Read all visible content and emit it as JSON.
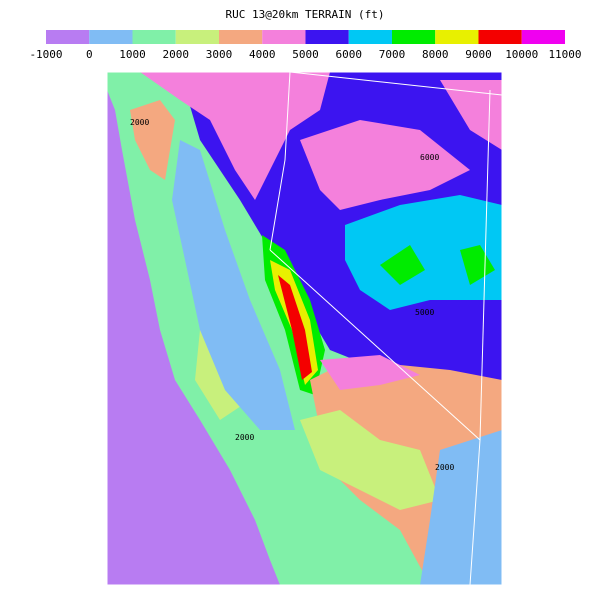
{
  "title": "RUC 13@20km TERRAIN (ft)",
  "colorbar": {
    "bins": [
      -1000,
      0,
      1000,
      2000,
      3000,
      4000,
      5000,
      6000,
      7000,
      8000,
      9000,
      10000,
      11000
    ],
    "colors": [
      "#b87cf2",
      "#80bcf4",
      "#80f0a8",
      "#c8f07c",
      "#f4a880",
      "#f480dc",
      "#3c14f0",
      "#00c8f4",
      "#00ec00",
      "#e8f000",
      "#f40000",
      "#f000f0"
    ]
  },
  "contour_labels": [
    "2000",
    "5000",
    "6000",
    "2000",
    "2000"
  ]
}
